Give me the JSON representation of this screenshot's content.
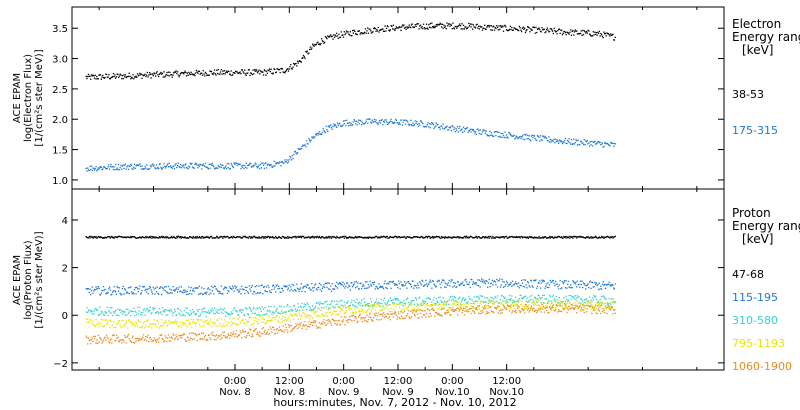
{
  "chart_data": [
    {
      "type": "scatter",
      "panel": "electron",
      "ylabel_lines": [
        "ACE EPAM",
        "log(Electron Flux)",
        "[1/(cm²s ster MeV)]"
      ],
      "ylim": [
        0.85,
        3.85
      ],
      "yticks": [
        1.0,
        1.5,
        2.0,
        2.5,
        3.0,
        3.5
      ],
      "ytick_labels": [
        "1.0",
        "1.5",
        "2.0",
        "2.5",
        "3.0",
        "3.5"
      ],
      "legend_title_lines": [
        "Electron",
        "Energy ranges",
        "[keV]"
      ],
      "series": [
        {
          "name": "38-53",
          "color": "#000000",
          "points": [
            [
              -33,
              2.7
            ],
            [
              -25,
              2.72
            ],
            [
              -12,
              2.76
            ],
            [
              -4,
              2.78
            ],
            [
              6,
              2.78
            ],
            [
              11,
              2.82
            ],
            [
              14,
              2.95
            ],
            [
              17,
              3.2
            ],
            [
              19,
              3.3
            ],
            [
              22,
              3.38
            ],
            [
              26,
              3.44
            ],
            [
              32,
              3.5
            ],
            [
              38,
              3.53
            ],
            [
              44,
              3.55
            ],
            [
              50,
              3.55
            ],
            [
              56,
              3.52
            ],
            [
              62,
              3.5
            ],
            [
              68,
              3.47
            ],
            [
              74,
              3.44
            ],
            [
              80,
              3.42
            ],
            [
              84,
              3.36
            ]
          ]
        },
        {
          "name": "175-315",
          "color": "#1f78d1",
          "points": [
            [
              -33,
              1.2
            ],
            [
              -25,
              1.23
            ],
            [
              -12,
              1.24
            ],
            [
              -4,
              1.24
            ],
            [
              6,
              1.24
            ],
            [
              11,
              1.3
            ],
            [
              14,
              1.5
            ],
            [
              17,
              1.7
            ],
            [
              20,
              1.85
            ],
            [
              24,
              1.95
            ],
            [
              30,
              1.97
            ],
            [
              36,
              1.96
            ],
            [
              42,
              1.93
            ],
            [
              48,
              1.86
            ],
            [
              54,
              1.8
            ],
            [
              60,
              1.75
            ],
            [
              66,
              1.7
            ],
            [
              72,
              1.65
            ],
            [
              78,
              1.62
            ],
            [
              84,
              1.58
            ]
          ]
        }
      ]
    },
    {
      "type": "scatter",
      "panel": "proton",
      "ylabel_lines": [
        "ACE EPAM",
        "log(Proton Flux)",
        "[1/(cm²s ster MeV)]"
      ],
      "ylim": [
        -2.3,
        5.3
      ],
      "yticks": [
        -2,
        0,
        2,
        4
      ],
      "ytick_labels": [
        "−2",
        "0",
        "2",
        "4"
      ],
      "legend_title_lines": [
        "Proton",
        "Energy ranges",
        "[keV]"
      ],
      "xlabel": "hours:minutes, Nov.  7, 2012 - Nov. 10, 2012",
      "xlim": [
        -36,
        108
      ],
      "xticks": [
        0,
        12,
        24,
        36,
        48,
        60
      ],
      "xtick_labels": [
        [
          "0:00",
          "Nov. 8"
        ],
        [
          "12:00",
          "Nov. 8"
        ],
        [
          "0:00",
          "Nov. 9"
        ],
        [
          "12:00",
          "Nov. 9"
        ],
        [
          "0:00",
          "Nov.10"
        ],
        [
          "12:00",
          "Nov.10"
        ]
      ],
      "series": [
        {
          "name": "47-68",
          "color": "#000000",
          "points": [
            [
              -33,
              3.3
            ],
            [
              -10,
              3.3
            ],
            [
              10,
              3.3
            ],
            [
              30,
              3.3
            ],
            [
              50,
              3.3
            ],
            [
              70,
              3.3
            ],
            [
              84,
              3.3
            ]
          ]
        },
        {
          "name": "115-195",
          "color": "#1f78d1",
          "points": [
            [
              -33,
              1.05
            ],
            [
              -20,
              1.07
            ],
            [
              -5,
              1.07
            ],
            [
              5,
              1.1
            ],
            [
              12,
              1.15
            ],
            [
              20,
              1.2
            ],
            [
              28,
              1.28
            ],
            [
              34,
              1.3
            ],
            [
              44,
              1.33
            ],
            [
              54,
              1.38
            ],
            [
              64,
              1.35
            ],
            [
              74,
              1.3
            ],
            [
              84,
              1.25
            ]
          ]
        },
        {
          "name": "310-580",
          "color": "#35d0d0",
          "points": [
            [
              -33,
              0.2
            ],
            [
              -20,
              0.18
            ],
            [
              -5,
              0.15
            ],
            [
              5,
              0.2
            ],
            [
              12,
              0.3
            ],
            [
              20,
              0.45
            ],
            [
              28,
              0.55
            ],
            [
              34,
              0.58
            ],
            [
              44,
              0.62
            ],
            [
              54,
              0.68
            ],
            [
              64,
              0.7
            ],
            [
              74,
              0.68
            ],
            [
              84,
              0.65
            ]
          ]
        },
        {
          "name": "795-1193",
          "color": "#e6e600",
          "points": [
            [
              -33,
              -0.3
            ],
            [
              -20,
              -0.35
            ],
            [
              -5,
              -0.3
            ],
            [
              5,
              -0.2
            ],
            [
              12,
              -0.05
            ],
            [
              20,
              0.15
            ],
            [
              28,
              0.3
            ],
            [
              34,
              0.35
            ],
            [
              44,
              0.4
            ],
            [
              54,
              0.45
            ],
            [
              64,
              0.48
            ],
            [
              74,
              0.45
            ],
            [
              84,
              0.4
            ]
          ]
        },
        {
          "name": "1060-1900",
          "color": "#e98a1c",
          "points": [
            [
              -33,
              -1.0
            ],
            [
              -20,
              -0.95
            ],
            [
              -5,
              -0.85
            ],
            [
              5,
              -0.7
            ],
            [
              12,
              -0.5
            ],
            [
              20,
              -0.3
            ],
            [
              28,
              -0.1
            ],
            [
              34,
              0.0
            ],
            [
              44,
              0.15
            ],
            [
              54,
              0.25
            ],
            [
              64,
              0.3
            ],
            [
              74,
              0.3
            ],
            [
              84,
              0.25
            ]
          ]
        }
      ]
    }
  ]
}
